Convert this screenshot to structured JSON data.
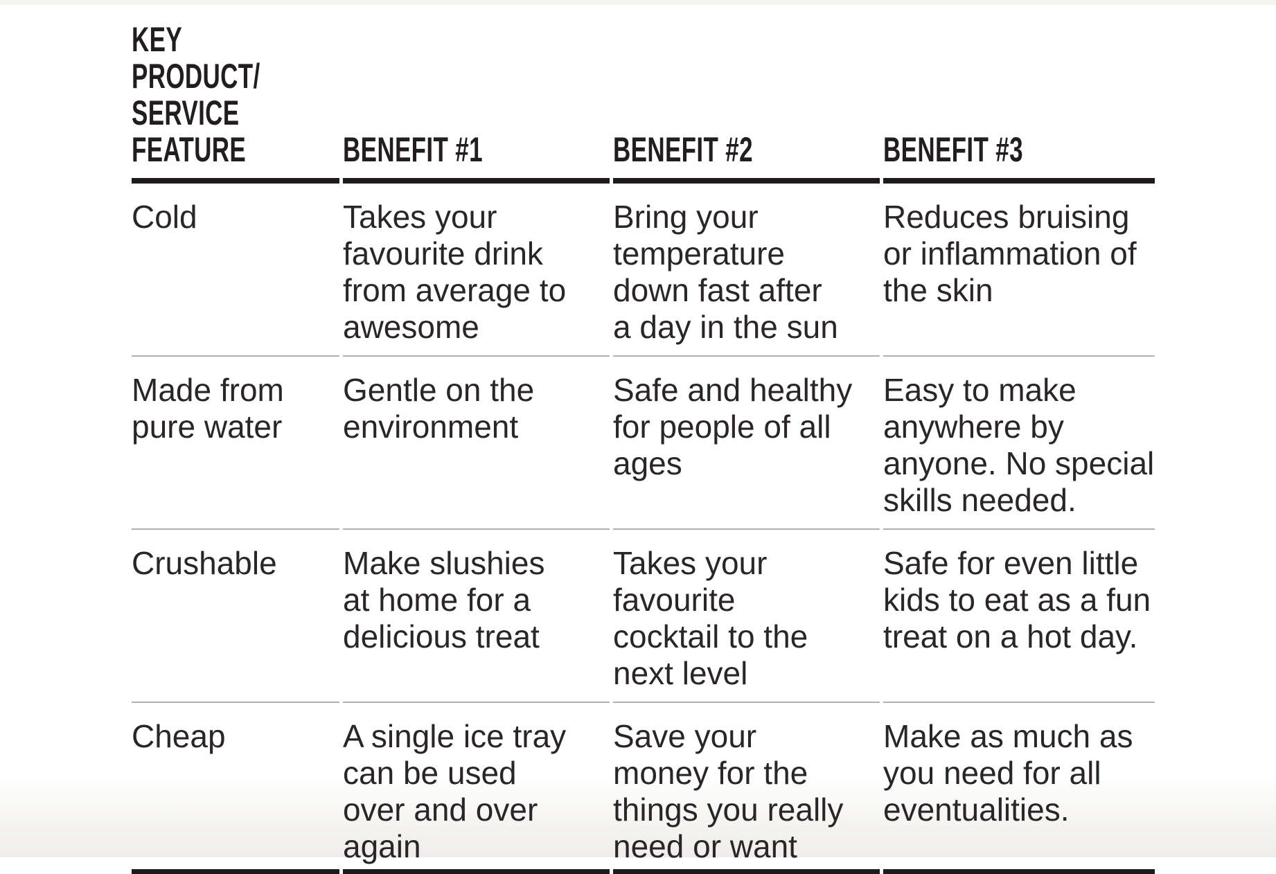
{
  "page": {
    "background": "#ffffff",
    "top_edge_color": "#f4f4f3",
    "bottom_fade_color": "#f2f1ee"
  },
  "colors": {
    "ink": "#231f20",
    "thick_rule": "#1f1b1c",
    "thin_rule": "#b1afaf"
  },
  "table": {
    "header": {
      "feature": "KEY PRODUCT/\nSERVICE\nFEATURE",
      "benefits": [
        "BENEFIT #1",
        "BENEFIT #2",
        "BENEFIT #3"
      ]
    },
    "rows": [
      {
        "feature": "Cold",
        "benefits": [
          "Takes your\nfavourite drink\nfrom average to\nawesome",
          "Bring your\ntemperature\ndown fast after\na day in the sun",
          "Reduces bruising\nor inflammation of\nthe skin"
        ]
      },
      {
        "feature": "Made from\npure water",
        "benefits": [
          "Gentle on the\nenvironment",
          "Safe and healthy\nfor people of all\nages",
          "Easy to make\nanywhere by\nanyone. No special\nskills needed."
        ]
      },
      {
        "feature": "Crushable",
        "benefits": [
          "Make slushies\nat home for a\ndelicious treat",
          "Takes your\nfavourite\ncocktail to the\nnext level",
          "Safe for even little\nkids to eat as a fun\ntreat on a hot day."
        ]
      },
      {
        "feature": "Cheap",
        "benefits": [
          "A single ice tray\ncan be used\nover and over\nagain",
          "Save your\nmoney for the\nthings you really\nneed or want",
          "Make as much as\nyou need for all\neventualities."
        ]
      }
    ]
  }
}
